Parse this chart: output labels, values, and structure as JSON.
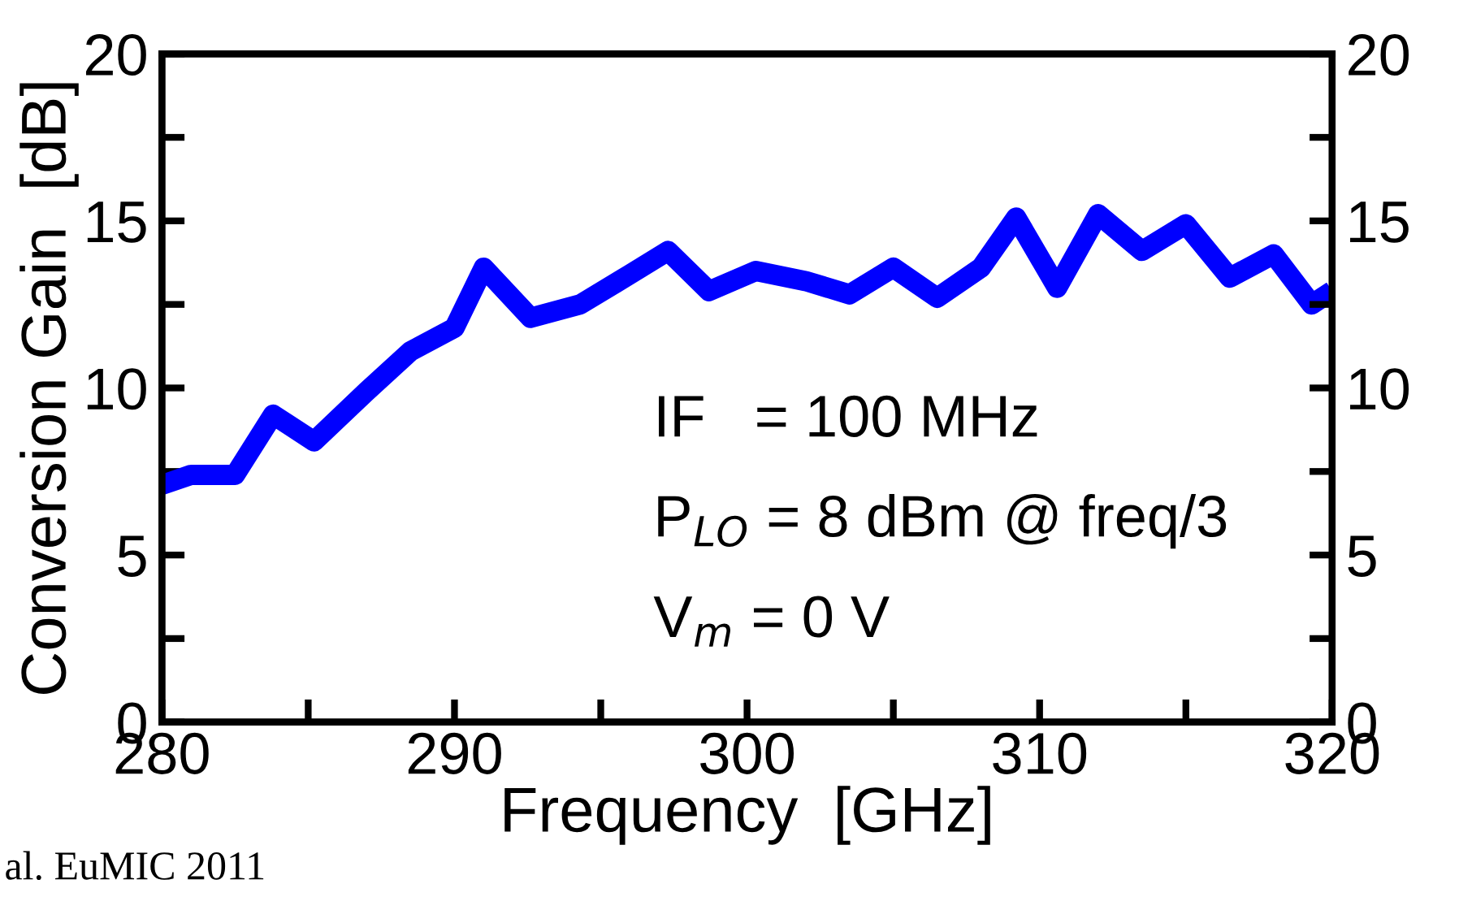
{
  "chart_data": {
    "type": "line",
    "xlabel": "Frequency  [GHz]",
    "ylabel": "Conversion Gain  [dB]",
    "xlim": [
      280,
      320
    ],
    "xticks": [
      280,
      {
        "value": 285,
        "label": null
      },
      290,
      {
        "value": 295,
        "label": null
      },
      300,
      {
        "value": 305,
        "label": null
      },
      310,
      {
        "value": 315,
        "label": null
      },
      320
    ],
    "ylim": [
      0,
      20
    ],
    "yticks": [
      0,
      {
        "value": 2.5,
        "label": null
      },
      5,
      {
        "value": 7.5,
        "label": null
      },
      10,
      {
        "value": 12.5,
        "label": null
      },
      15,
      {
        "value": 17.5,
        "label": null
      },
      20
    ],
    "y2lim": [
      0,
      20
    ],
    "y2ticks": [
      0,
      {
        "value": 2.5,
        "label": null
      },
      5,
      {
        "value": 7.5,
        "label": null
      },
      10,
      {
        "value": 12.5,
        "label": null
      },
      15,
      {
        "value": 17.5,
        "label": null
      },
      20
    ],
    "grid": false,
    "marker": "none",
    "line_style": "solid",
    "series": [
      {
        "color": "#0000ff",
        "x": [
          280,
          281,
          282.5,
          283.8,
          285.2,
          287,
          288.5,
          290,
          291,
          292.6,
          294.3,
          296,
          297.3,
          298.7,
          300.3,
          302,
          303.5,
          305,
          306.5,
          308,
          309.2,
          310.6,
          312,
          313.5,
          315,
          316.5,
          318,
          319.3,
          320
        ],
        "values": [
          7.1,
          7.4,
          7.4,
          9.2,
          8.4,
          9.9,
          11.1,
          11.8,
          13.6,
          12.1,
          12.5,
          13.4,
          14.1,
          12.9,
          13.5,
          13.2,
          12.8,
          13.6,
          12.7,
          13.6,
          15.1,
          13.0,
          15.2,
          14.1,
          14.9,
          13.3,
          14.0,
          12.5,
          12.9
        ]
      }
    ],
    "annotations": [
      "IF   = 100 MHz",
      "P$_{LO}$ = 8 dBm @ freq/3",
      "V$_{m}$ = 0 V",
      "al. EuMIC 2011"
    ]
  }
}
